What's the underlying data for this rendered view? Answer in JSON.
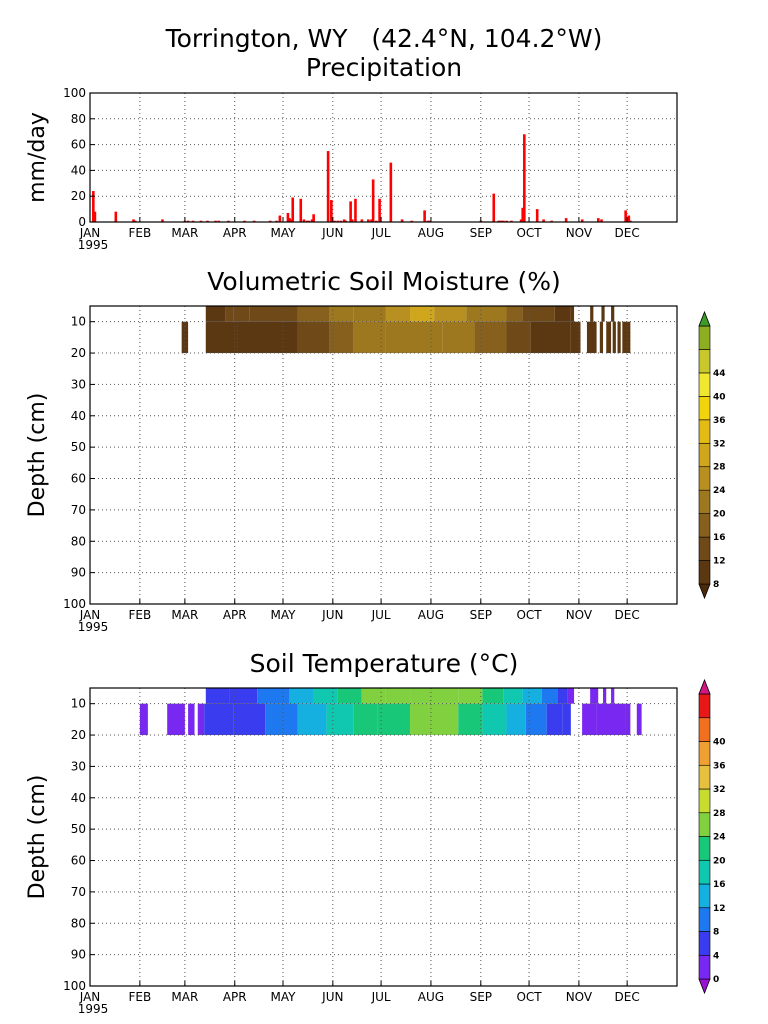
{
  "figure": {
    "station_title": "Torrington, WY   (42.4°N, 104.2°W)"
  },
  "colors": {
    "precip_bar": "#ff0000",
    "grid": "#555555",
    "moisture_bands": [
      "#4a2a0a",
      "#5c3812",
      "#6f4a18",
      "#86601c",
      "#9e781f",
      "#b89022",
      "#d0a61c",
      "#e2bc14",
      "#f2d40c",
      "#f0e830",
      "#c8c82c",
      "#8cae20",
      "#3c9a28"
    ],
    "temperature_bands": [
      "#9a10d0",
      "#7828f0",
      "#3a3cf0",
      "#1e78f0",
      "#16b0e0",
      "#10c8b0",
      "#18c878",
      "#80d040",
      "#c8dc30",
      "#e8c040",
      "#f0a030",
      "#f07020",
      "#e81818",
      "#d01880"
    ]
  },
  "chart_data": [
    {
      "type": "bar",
      "title": "Precipitation",
      "ylabel": "mm/day",
      "ylim": [
        0,
        100
      ],
      "yticks": [
        0,
        20,
        40,
        60,
        80,
        100
      ],
      "xlim": [
        1,
        366
      ],
      "month_ticks": [
        "JAN",
        "FEB",
        "MAR",
        "APR",
        "MAY",
        "JUN",
        "JUL",
        "AUG",
        "SEP",
        "OCT",
        "NOV",
        "DEC"
      ],
      "month_start_days": [
        1,
        32,
        60,
        91,
        121,
        152,
        182,
        213,
        244,
        274,
        305,
        335
      ],
      "year_label": "1995",
      "grid": true,
      "series": [
        {
          "x": [
            3,
            4,
            17,
            28,
            29,
            46,
            60,
            62,
            65,
            70,
            74,
            79,
            81,
            87,
            97,
            103,
            113,
            117,
            119,
            124,
            125,
            126,
            127,
            132,
            134,
            136,
            137,
            139,
            140,
            149,
            151,
            153,
            155,
            157,
            159,
            160,
            163,
            164,
            166,
            170,
            174,
            176,
            177,
            179,
            181,
            188,
            195,
            201,
            209,
            211,
            212,
            244,
            252,
            255,
            256,
            257,
            258,
            260,
            263,
            269,
            270,
            271,
            279,
            283,
            288,
            297,
            307,
            317,
            319,
            334,
            336,
            337
          ],
          "y": [
            24,
            8,
            8,
            2,
            1,
            2,
            1,
            1,
            1,
            1,
            1,
            1,
            1,
            1,
            1,
            1,
            1,
            1,
            5,
            7,
            3,
            2,
            19,
            18,
            2,
            1,
            1,
            2,
            6,
            55,
            17,
            1,
            1,
            1,
            2,
            1,
            16,
            2,
            18,
            2,
            2,
            2,
            33,
            1,
            18,
            46,
            2,
            1,
            9,
            1,
            1,
            1,
            22,
            1,
            1,
            1,
            1,
            1,
            1,
            2,
            11,
            68,
            10,
            2,
            1,
            3,
            2,
            3,
            2,
            9,
            5,
            1
          ]
        }
      ]
    },
    {
      "type": "heatmap",
      "title": "Volumetric Soil Moisture (%)",
      "ylabel": "Depth (cm)",
      "ylim": [
        100,
        5
      ],
      "yticks": [
        10,
        20,
        30,
        40,
        50,
        60,
        70,
        80,
        90,
        100
      ],
      "month_ticks": [
        "JAN",
        "FEB",
        "MAR",
        "APR",
        "MAY",
        "JUN",
        "JUL",
        "AUG",
        "SEP",
        "OCT",
        "NOV",
        "DEC"
      ],
      "month_start_days": [
        1,
        32,
        60,
        91,
        121,
        152,
        182,
        213,
        244,
        274,
        305,
        335
      ],
      "year_label": "1995",
      "grid": true,
      "colorbar_levels": [
        8,
        12,
        16,
        20,
        24,
        28,
        32,
        36,
        40,
        44
      ],
      "colorbar_labels": [
        "8",
        "12",
        "16",
        "20",
        "24",
        "28",
        "32",
        "36",
        "40",
        "44"
      ],
      "layers": [
        {
          "depth_top": 5,
          "depth_bottom": 10,
          "segments": [
            {
              "start": 73,
              "end": 85,
              "value": 11
            },
            {
              "start": 85,
              "end": 90,
              "value": 15
            },
            {
              "start": 90,
              "end": 100,
              "value": 13
            },
            {
              "start": 100,
              "end": 130,
              "value": 14
            },
            {
              "start": 130,
              "end": 150,
              "value": 17
            },
            {
              "start": 150,
              "end": 165,
              "value": 20
            },
            {
              "start": 165,
              "end": 185,
              "value": 23
            },
            {
              "start": 185,
              "end": 200,
              "value": 27
            },
            {
              "start": 200,
              "end": 215,
              "value": 30
            },
            {
              "start": 215,
              "end": 235,
              "value": 25
            },
            {
              "start": 235,
              "end": 260,
              "value": 21
            },
            {
              "start": 260,
              "end": 270,
              "value": 17
            },
            {
              "start": 270,
              "end": 290,
              "value": 13
            },
            {
              "start": 290,
              "end": 300,
              "value": 11
            },
            {
              "start": 300,
              "end": 302,
              "value": 9
            },
            {
              "start": 312,
              "end": 314,
              "value": 9
            },
            {
              "start": 319,
              "end": 321,
              "value": 9
            },
            {
              "start": 325,
              "end": 327,
              "value": 9
            }
          ]
        },
        {
          "depth_top": 10,
          "depth_bottom": 20,
          "segments": [
            {
              "start": 58,
              "end": 62,
              "value": 9
            },
            {
              "start": 73,
              "end": 93,
              "value": 9
            },
            {
              "start": 93,
              "end": 130,
              "value": 11
            },
            {
              "start": 130,
              "end": 150,
              "value": 15
            },
            {
              "start": 150,
              "end": 165,
              "value": 19
            },
            {
              "start": 165,
              "end": 185,
              "value": 21
            },
            {
              "start": 185,
              "end": 220,
              "value": 23
            },
            {
              "start": 220,
              "end": 240,
              "value": 22
            },
            {
              "start": 240,
              "end": 260,
              "value": 19
            },
            {
              "start": 260,
              "end": 275,
              "value": 13
            },
            {
              "start": 275,
              "end": 300,
              "value": 10
            },
            {
              "start": 300,
              "end": 306,
              "value": 9
            },
            {
              "start": 310,
              "end": 316,
              "value": 9
            },
            {
              "start": 318,
              "end": 320,
              "value": 9
            },
            {
              "start": 322,
              "end": 325,
              "value": 9
            },
            {
              "start": 326,
              "end": 328,
              "value": 9
            },
            {
              "start": 329,
              "end": 331,
              "value": 9
            },
            {
              "start": 332,
              "end": 337,
              "value": 9
            }
          ]
        }
      ]
    },
    {
      "type": "heatmap",
      "title": "Soil Temperature (°C)",
      "ylabel": "Depth (cm)",
      "ylim": [
        100,
        5
      ],
      "yticks": [
        10,
        20,
        30,
        40,
        50,
        60,
        70,
        80,
        90,
        100
      ],
      "month_ticks": [
        "JAN",
        "FEB",
        "MAR",
        "APR",
        "MAY",
        "JUN",
        "JUL",
        "AUG",
        "SEP",
        "OCT",
        "NOV",
        "DEC"
      ],
      "month_start_days": [
        1,
        32,
        60,
        91,
        121,
        152,
        182,
        213,
        244,
        274,
        305,
        335
      ],
      "year_label": "1995",
      "grid": true,
      "colorbar_levels": [
        0,
        4,
        8,
        12,
        16,
        20,
        24,
        28,
        32,
        36,
        40
      ],
      "colorbar_labels": [
        "0",
        "4",
        "8",
        "12",
        "16",
        "20",
        "24",
        "28",
        "32",
        "36",
        "40"
      ],
      "layers": [
        {
          "depth_top": 5,
          "depth_bottom": 10,
          "segments": [
            {
              "start": 73,
              "end": 88,
              "value": 5
            },
            {
              "start": 88,
              "end": 105,
              "value": 7
            },
            {
              "start": 105,
              "end": 125,
              "value": 10
            },
            {
              "start": 125,
              "end": 140,
              "value": 14
            },
            {
              "start": 140,
              "end": 155,
              "value": 18
            },
            {
              "start": 155,
              "end": 170,
              "value": 22
            },
            {
              "start": 170,
              "end": 185,
              "value": 25
            },
            {
              "start": 185,
              "end": 200,
              "value": 26
            },
            {
              "start": 200,
              "end": 230,
              "value": 27
            },
            {
              "start": 230,
              "end": 245,
              "value": 25
            },
            {
              "start": 245,
              "end": 258,
              "value": 21
            },
            {
              "start": 258,
              "end": 270,
              "value": 17
            },
            {
              "start": 270,
              "end": 282,
              "value": 13
            },
            {
              "start": 282,
              "end": 292,
              "value": 9
            },
            {
              "start": 292,
              "end": 298,
              "value": 5
            },
            {
              "start": 298,
              "end": 302,
              "value": 2
            },
            {
              "start": 312,
              "end": 317,
              "value": 2
            },
            {
              "start": 320,
              "end": 322,
              "value": 2
            },
            {
              "start": 325,
              "end": 327,
              "value": 2
            }
          ]
        },
        {
          "depth_top": 10,
          "depth_bottom": 20,
          "segments": [
            {
              "start": 32,
              "end": 37,
              "value": 1
            },
            {
              "start": 49,
              "end": 60,
              "value": 2
            },
            {
              "start": 62,
              "end": 66,
              "value": 3
            },
            {
              "start": 68,
              "end": 72,
              "value": 2
            },
            {
              "start": 72,
              "end": 90,
              "value": 5
            },
            {
              "start": 90,
              "end": 110,
              "value": 7
            },
            {
              "start": 110,
              "end": 130,
              "value": 10
            },
            {
              "start": 130,
              "end": 148,
              "value": 13
            },
            {
              "start": 148,
              "end": 165,
              "value": 17
            },
            {
              "start": 165,
              "end": 180,
              "value": 21
            },
            {
              "start": 180,
              "end": 200,
              "value": 23
            },
            {
              "start": 200,
              "end": 230,
              "value": 25
            },
            {
              "start": 230,
              "end": 245,
              "value": 22
            },
            {
              "start": 245,
              "end": 260,
              "value": 19
            },
            {
              "start": 260,
              "end": 272,
              "value": 15
            },
            {
              "start": 272,
              "end": 285,
              "value": 11
            },
            {
              "start": 285,
              "end": 295,
              "value": 7
            },
            {
              "start": 295,
              "end": 300,
              "value": 5
            },
            {
              "start": 307,
              "end": 316,
              "value": 2
            },
            {
              "start": 316,
              "end": 334,
              "value": 1
            },
            {
              "start": 334,
              "end": 337,
              "value": 2
            },
            {
              "start": 341,
              "end": 344,
              "value": 1
            }
          ]
        }
      ]
    }
  ]
}
